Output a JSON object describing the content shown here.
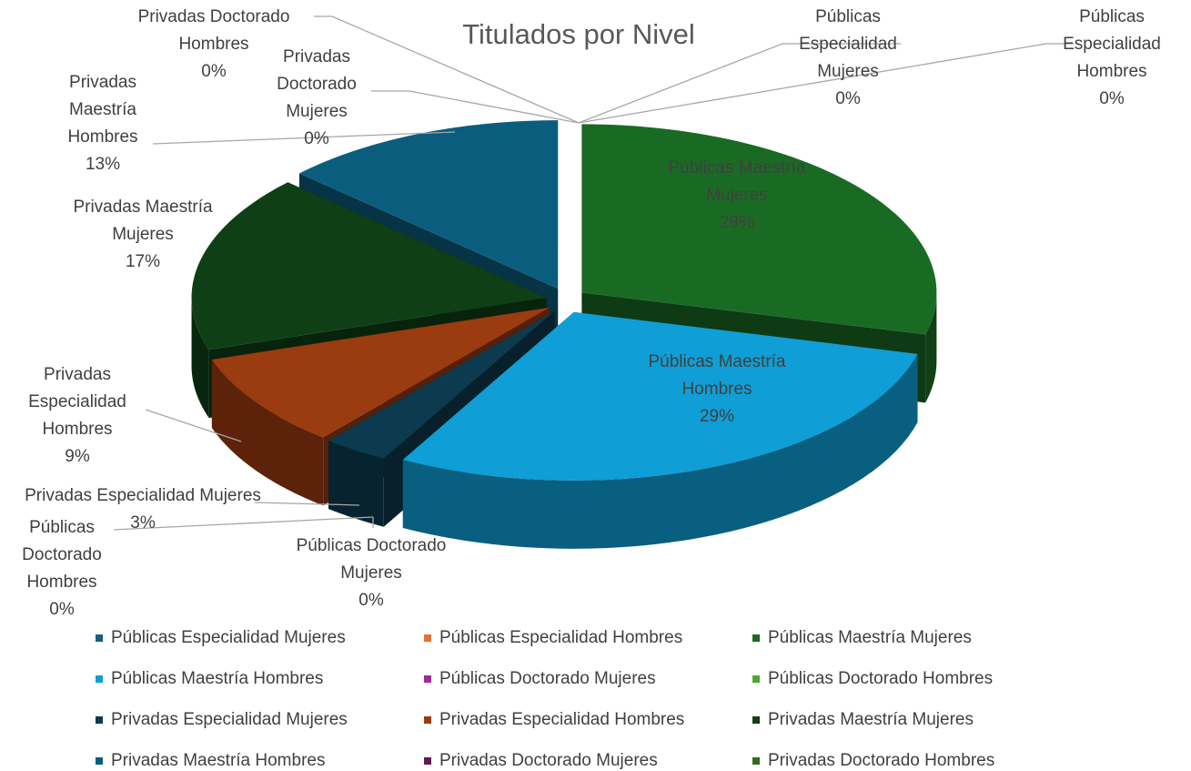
{
  "chart_data": {
    "type": "pie3d",
    "title": "Titulados por Nivel",
    "categories": [
      "Públicas Especialidad Mujeres",
      "Públicas Especialidad Hombres",
      "Públicas Maestría Mujeres",
      "Públicas Maestría Hombres",
      "Públicas Doctorado Mujeres",
      "Públicas Doctorado Hombres",
      "Privadas  Especialidad Mujeres",
      "Privadas  Especialidad Hombres",
      "Privadas  Maestría Mujeres",
      "Privadas  Maestría Hombres",
      "Privadas  Doctorado Mujeres",
      "Privadas  Doctorado Hombres"
    ],
    "values": [
      0,
      0,
      29,
      29,
      0,
      0,
      3,
      9,
      17,
      13,
      0,
      0
    ],
    "value_labels": [
      "0%",
      "0%",
      "29%",
      "29%",
      "0%",
      "0%",
      "3%",
      "9%",
      "17%",
      "13%",
      "0%",
      "0%"
    ],
    "colors": [
      "#156082",
      "#e97132",
      "#196b24",
      "#0f9ed5",
      "#a02b93",
      "#4ea72e",
      "#0c3a4e",
      "#9a3b10",
      "#0e3f15",
      "#0b5d7e",
      "#5f1a56",
      "#2f6e1e"
    ],
    "legend": "bottom"
  }
}
